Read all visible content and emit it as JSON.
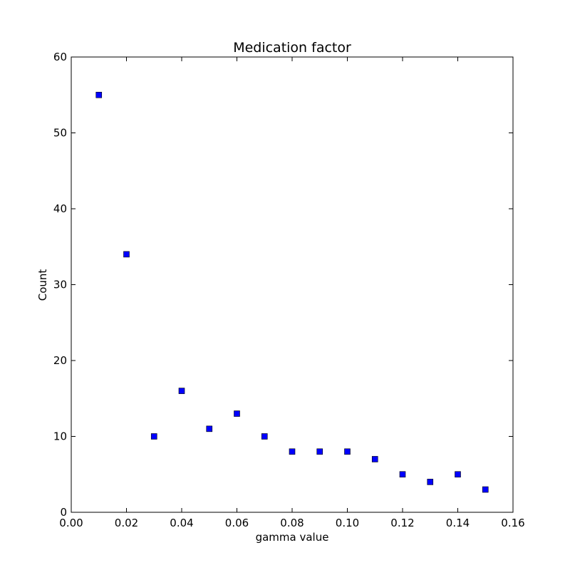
{
  "chart_data": {
    "type": "scatter",
    "title": "Medication factor",
    "xlabel": "gamma value",
    "ylabel": "Count",
    "xlim": [
      0.0,
      0.16
    ],
    "ylim": [
      0,
      60
    ],
    "x_ticks": [
      "0.00",
      "0.02",
      "0.04",
      "0.06",
      "0.08",
      "0.10",
      "0.12",
      "0.14",
      "0.16"
    ],
    "y_ticks": [
      "0",
      "10",
      "20",
      "30",
      "40",
      "50",
      "60"
    ],
    "marker": "square",
    "marker_color": "#0000ff",
    "grid": false,
    "series": [
      {
        "x": [
          0.01,
          0.02,
          0.03,
          0.04,
          0.05,
          0.06,
          0.07,
          0.08,
          0.09,
          0.1,
          0.11,
          0.12,
          0.13,
          0.14,
          0.15
        ],
        "y": [
          55,
          34,
          10,
          16,
          11,
          13,
          10,
          8,
          8,
          8,
          7,
          5,
          4,
          5,
          3
        ]
      }
    ]
  }
}
